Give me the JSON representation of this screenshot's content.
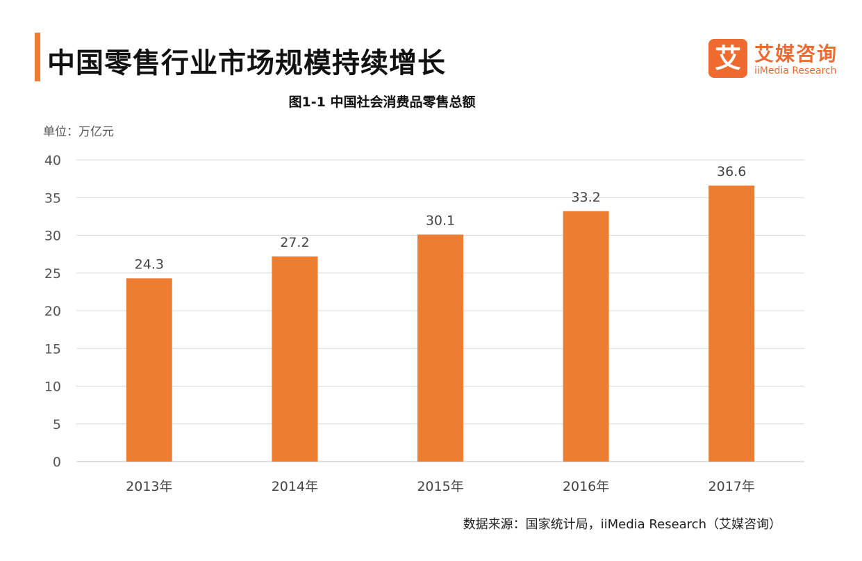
{
  "header": {
    "title": "中国零售行业市场规模持续增长",
    "accent_color": "#ed7d31"
  },
  "logo": {
    "mark": "艾",
    "name_cn": "艾媒咨询",
    "name_en": "iiMedia Research",
    "color": "#ee6a2e"
  },
  "chart_data": {
    "type": "bar",
    "title": "图1-1 中国社会消费品零售总额",
    "unit_label": "单位：万亿元",
    "categories": [
      "2013年",
      "2014年",
      "2015年",
      "2016年",
      "2017年"
    ],
    "values": [
      24.3,
      27.2,
      30.1,
      33.2,
      36.6
    ],
    "value_labels": [
      "24.3",
      "27.2",
      "30.1",
      "33.2",
      "36.6"
    ],
    "ylim": [
      0,
      40
    ],
    "yticks": [
      "0",
      "5",
      "10",
      "15",
      "20",
      "25",
      "30",
      "35",
      "40"
    ],
    "bar_color": "#ed7d31",
    "grid": true,
    "legend": "none"
  },
  "footer": {
    "source": "数据来源：国家统计局，iiMedia Research（艾媒咨询）"
  }
}
